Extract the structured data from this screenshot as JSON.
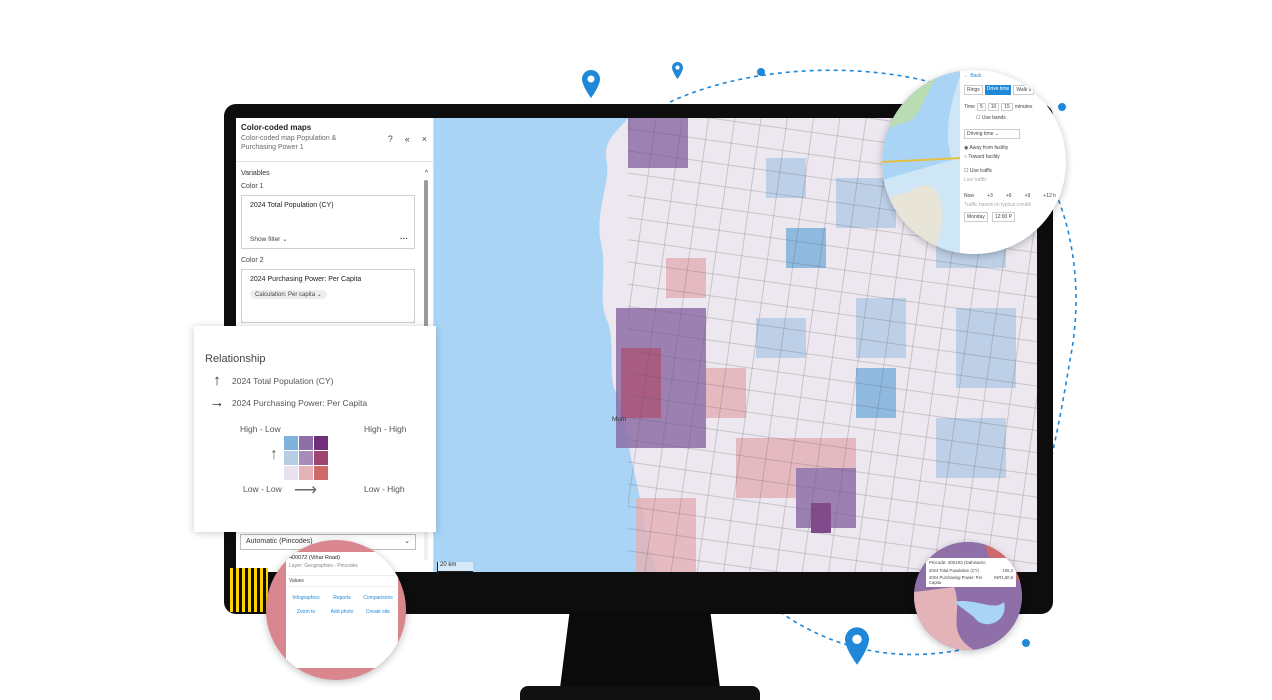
{
  "panel": {
    "title": "Color-coded maps",
    "subtitle": "Color-coded map Population & Purchasing Power 1",
    "section": "Variables",
    "color1_label": "Color 1",
    "color1_variable": "2024 Total Population (CY)",
    "show_filter": "Show filter",
    "color2_label": "Color 2",
    "color2_variable": "2024 Purchasing Power: Per Capita",
    "calculation": "Calculation: Per capita",
    "geography_select": "Automatic (Pincodes)"
  },
  "relationship": {
    "title": "Relationship",
    "row1": "2024 Total Population (CY)",
    "row2": "2024 Purchasing Power: Per Capita",
    "high_low": "High - Low",
    "high_high": "High - High",
    "low_low": "Low - Low",
    "low_high": "Low - High",
    "colors": [
      "#7fb2dc",
      "#8e6fa8",
      "#6f2f7a",
      "#b6cde6",
      "#a68cb8",
      "#9d4470",
      "#e9e2ee",
      "#e3b3b8",
      "#cf6a6a"
    ]
  },
  "map": {
    "scale": "20 km",
    "city_label": "Mum"
  },
  "drive_popup": {
    "back": "← Back",
    "tabs": [
      "Rings",
      "Drive time",
      "Walk ti"
    ],
    "time_label": "Time",
    "times": [
      "5",
      "10",
      "15"
    ],
    "unit": "minutes",
    "use_bands": "Use bands",
    "mode": "Driving time",
    "away": "Away from facility",
    "toward": "Toward facility",
    "use_traffic": "Use traffic",
    "live_traffic": "Live traffic",
    "ticks": [
      "Now",
      "+3",
      "+6",
      "+9",
      "+12 h"
    ],
    "traffic_note": "Traffic based on typical conditi",
    "day": "Monday",
    "time_of_day": "12:00 P"
  },
  "info_popup": {
    "title": "400072 (Vihar Road)",
    "layer": "Layer: Geographies - Pincodes",
    "values": "Values",
    "actions": [
      "Infographics",
      "Reports",
      "Comparisons",
      "Zoom to",
      "Add photo",
      "Create site"
    ]
  },
  "value_popup": {
    "title": "Pincode: 400103 (Dahisarnc",
    "rows": [
      {
        "label": "2024 Total Population (CY)",
        "value": "105,3"
      },
      {
        "label": "2024 Purchasing Power: Per Capita",
        "value": "INR1,50,9"
      }
    ]
  }
}
